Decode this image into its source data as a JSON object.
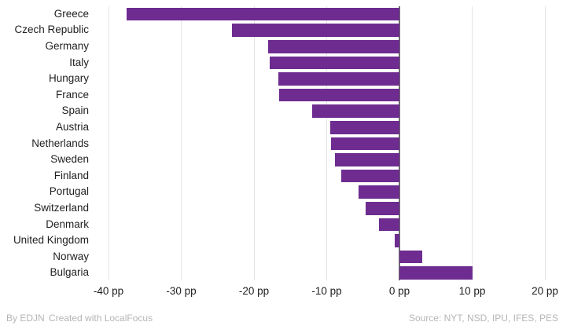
{
  "chart_data": {
    "type": "bar",
    "orientation": "horizontal",
    "title": "",
    "xlabel": "",
    "ylabel": "",
    "unit": "pp",
    "categories": [
      "Greece",
      "Czech Republic",
      "Germany",
      "Italy",
      "Hungary",
      "France",
      "Spain",
      "Austria",
      "Netherlands",
      "Sweden",
      "Finland",
      "Portugal",
      "Switzerland",
      "Denmark",
      "United Kingdom",
      "Norway",
      "Bulgaria"
    ],
    "values": [
      -37.5,
      -23.0,
      -18.1,
      -17.8,
      -16.6,
      -16.5,
      -12.0,
      -9.5,
      -9.4,
      -8.9,
      -8.0,
      -5.6,
      -4.6,
      -2.8,
      -0.7,
      3.1,
      10.1
    ],
    "xlim": [
      -40,
      20
    ],
    "x_ticks": [
      {
        "value": -40,
        "label": "-40 pp"
      },
      {
        "value": -30,
        "label": "-30 pp"
      },
      {
        "value": -20,
        "label": "-20 pp"
      },
      {
        "value": -10,
        "label": "-10 pp"
      },
      {
        "value": 0,
        "label": "0 pp"
      },
      {
        "value": 10,
        "label": "10 pp"
      },
      {
        "value": 20,
        "label": "20 pp"
      }
    ],
    "grid": true,
    "legend": "none",
    "colors": {
      "bar": "#6e2c90",
      "gridline": "#e4e4e4",
      "zero_line": "#6f6f6f",
      "label_text": "#1f1f1f",
      "footer_text": "#b5b5b5"
    }
  },
  "footer": {
    "byline": "By EDJN",
    "credit": "Created with LocalFocus",
    "source": "Source: NYT, NSD, IPU, IFES, PES"
  }
}
